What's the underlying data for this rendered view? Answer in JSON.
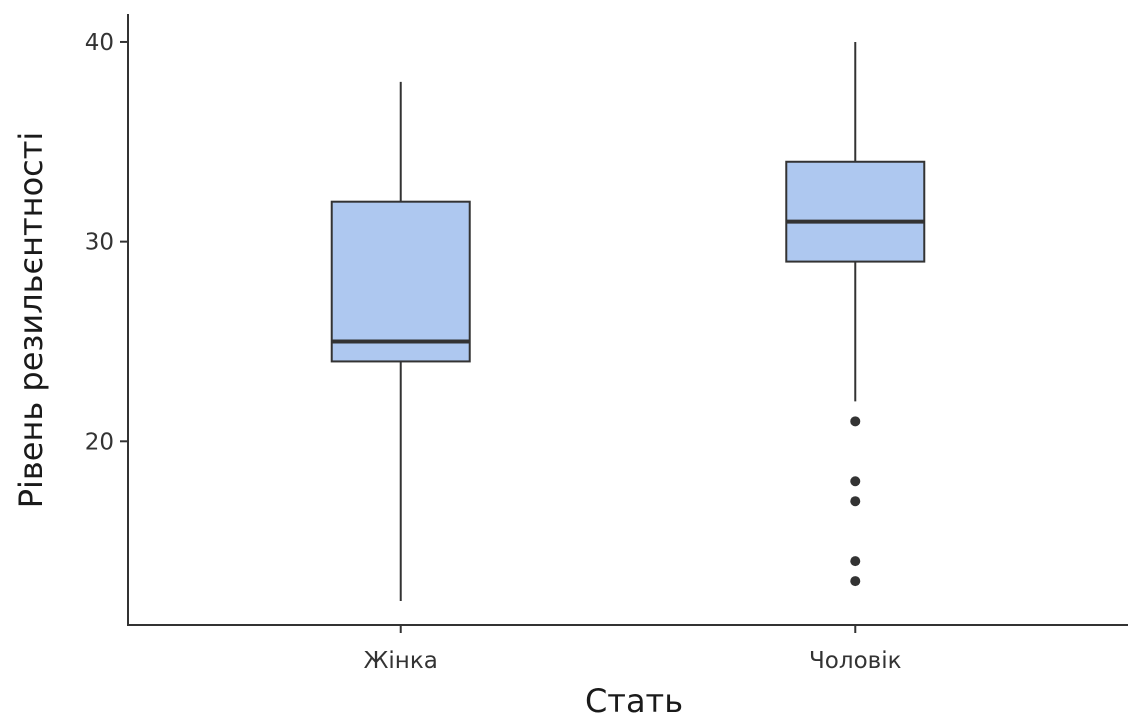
{
  "chart_data": {
    "type": "boxplot",
    "xlabel": "Стать",
    "ylabel": "Рівень резильєнтності",
    "categories": [
      "Жінка",
      "Чоловік"
    ],
    "ylim": [
      10.8,
      41.4
    ],
    "yticks": [
      20,
      30,
      40
    ],
    "grid": false,
    "legend": "none",
    "box_fill": "#aec8f0",
    "line_color": "#333333",
    "boxes": [
      {
        "category": "Жінка",
        "whisker_low": 12,
        "q1": 24,
        "median": 25,
        "q3": 32,
        "whisker_high": 38,
        "outliers": []
      },
      {
        "category": "Чоловік",
        "whisker_low": 22,
        "q1": 29,
        "median": 31,
        "q3": 34,
        "whisker_high": 40,
        "outliers": [
          21,
          18,
          17,
          14,
          13
        ]
      }
    ]
  }
}
